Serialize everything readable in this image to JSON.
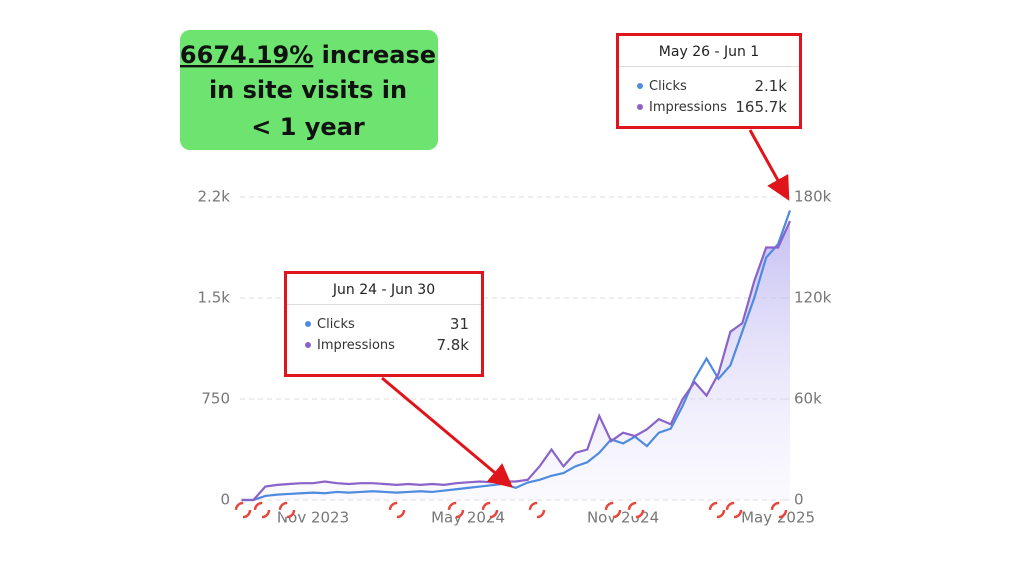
{
  "headline": {
    "highlight": "6674.19%",
    "line1": "increase",
    "line2": "in site visits in",
    "line3": "< 1 year"
  },
  "chart_data": {
    "type": "line",
    "categories": [
      null,
      null,
      null,
      null,
      null,
      null,
      "Nov 2023",
      null,
      null,
      null,
      null,
      null,
      null,
      null,
      null,
      null,
      null,
      null,
      null,
      "May 2024",
      null,
      null,
      null,
      null,
      null,
      null,
      null,
      null,
      null,
      null,
      null,
      null,
      "Nov 2024",
      null,
      null,
      null,
      null,
      null,
      null,
      null,
      null,
      null,
      null,
      null,
      null,
      "May 2025",
      null
    ],
    "series": [
      {
        "name": "Clicks",
        "color": "#4e8be0",
        "axis": "y",
        "values": [
          0,
          0,
          30,
          40,
          45,
          50,
          55,
          50,
          60,
          55,
          60,
          65,
          60,
          55,
          60,
          65,
          60,
          70,
          80,
          90,
          100,
          110,
          120,
          90,
          130,
          150,
          180,
          200,
          250,
          280,
          350,
          450,
          420,
          470,
          400,
          500,
          530,
          700,
          900,
          1050,
          900,
          1000,
          1250,
          1500,
          1800,
          1900,
          2150
        ]
      },
      {
        "name": "Impressions",
        "color": "#8a63c9",
        "axis": "y2",
        "values": [
          0,
          0,
          8000,
          9000,
          9500,
          10000,
          10000,
          11000,
          10000,
          9500,
          10000,
          10000,
          9500,
          9000,
          9500,
          9000,
          9500,
          9000,
          10000,
          10500,
          11000,
          10500,
          11000,
          11000,
          12000,
          20000,
          30000,
          20000,
          28000,
          30000,
          50000,
          35000,
          40000,
          38000,
          42000,
          48000,
          45000,
          60000,
          70000,
          62000,
          75000,
          100000,
          105000,
          130000,
          150000,
          150000,
          165700
        ]
      }
    ],
    "ylim": [
      0,
      2250
    ],
    "yticks": [
      0,
      750,
      {
        "value": 1500,
        "label": "1.5k"
      },
      {
        "value": 2250,
        "label": "2.2k"
      }
    ],
    "y2lim": [
      0,
      180000
    ],
    "y2ticks": [
      0,
      {
        "value": 60000,
        "label": "60k"
      },
      {
        "value": 120000,
        "label": "120k"
      },
      {
        "value": 180000,
        "label": "180k"
      }
    ],
    "grid": true,
    "tooltips": [
      {
        "title": "May 26 - Jun 1",
        "rows": [
          {
            "label": "Clicks",
            "value": "2.1k"
          },
          {
            "label": "Impressions",
            "value": "165.7k"
          }
        ]
      },
      {
        "title": "Jun 24 - Jun 30",
        "rows": [
          {
            "label": "Clicks",
            "value": "31"
          },
          {
            "label": "Impressions",
            "value": "7.8k"
          }
        ]
      }
    ]
  }
}
